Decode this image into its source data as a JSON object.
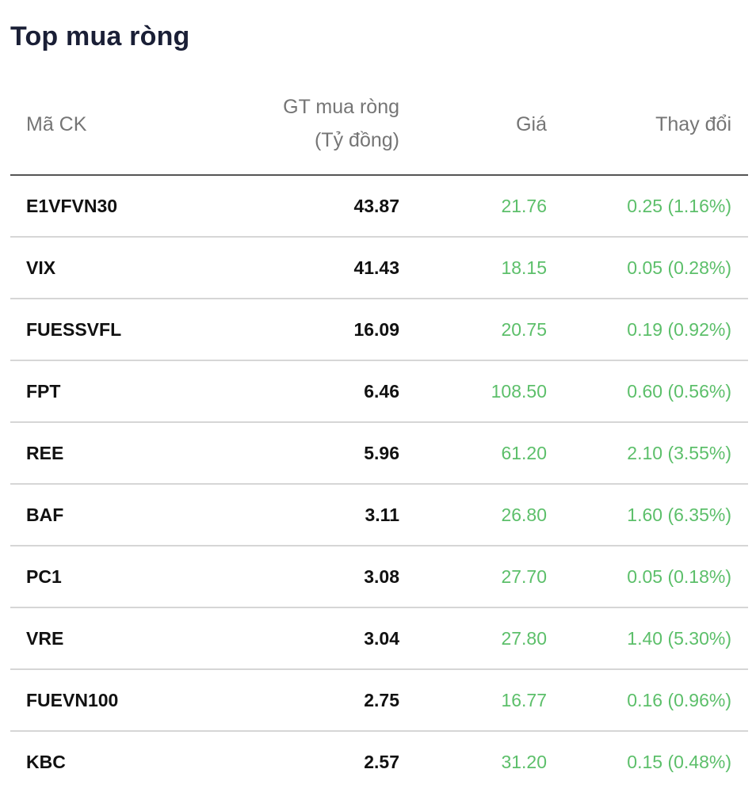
{
  "title": "Top mua ròng",
  "columns": {
    "code": "Mã CK",
    "net_value_line1": "GT mua ròng",
    "net_value_line2": "(Tỷ đồng)",
    "price": "Giá",
    "change": "Thay đổi"
  },
  "colors": {
    "up": "#5cbf6a",
    "text": "#111111",
    "header_text": "#757575",
    "title": "#1a1f36"
  },
  "rows": [
    {
      "code": "E1VFVN30",
      "net_value": "43.87",
      "price": "21.76",
      "change": "0.25 (1.16%)"
    },
    {
      "code": "VIX",
      "net_value": "41.43",
      "price": "18.15",
      "change": "0.05 (0.28%)"
    },
    {
      "code": "FUESSVFL",
      "net_value": "16.09",
      "price": "20.75",
      "change": "0.19 (0.92%)"
    },
    {
      "code": "FPT",
      "net_value": "6.46",
      "price": "108.50",
      "change": "0.60 (0.56%)"
    },
    {
      "code": "REE",
      "net_value": "5.96",
      "price": "61.20",
      "change": "2.10 (3.55%)"
    },
    {
      "code": "BAF",
      "net_value": "3.11",
      "price": "26.80",
      "change": "1.60 (6.35%)"
    },
    {
      "code": "PC1",
      "net_value": "3.08",
      "price": "27.70",
      "change": "0.05 (0.18%)"
    },
    {
      "code": "VRE",
      "net_value": "3.04",
      "price": "27.80",
      "change": "1.40 (5.30%)"
    },
    {
      "code": "FUEVN100",
      "net_value": "2.75",
      "price": "16.77",
      "change": "0.16 (0.96%)"
    },
    {
      "code": "KBC",
      "net_value": "2.57",
      "price": "31.20",
      "change": "0.15 (0.48%)"
    }
  ]
}
